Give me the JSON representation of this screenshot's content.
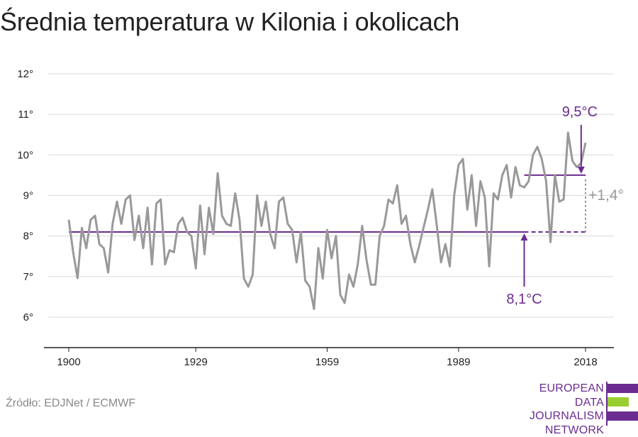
{
  "title": "Średnia temperatura w Kilonia i okolicach",
  "source": "Źródło: EDJNet / ECMWF",
  "logo": {
    "lines": [
      "EUROPEAN",
      "DATA JOURNALISM",
      "NETWORK"
    ],
    "colors": {
      "purple": "#6b2c91",
      "green": "#9acd32"
    }
  },
  "colors": {
    "line": "#999999",
    "average": "#6b2c91",
    "delta": "#999999",
    "grid": "#d9d9d9",
    "axis": "#222222"
  },
  "chart_data": {
    "type": "line",
    "title": "Średnia temperatura w Kilonia i okolicach",
    "xlim": [
      1900,
      2018
    ],
    "ylim": [
      5.2,
      12
    ],
    "x_ticks": [
      1900,
      1929,
      1959,
      1989,
      2018
    ],
    "y_ticks": [
      {
        "value": 6,
        "label": "6°"
      },
      {
        "value": 7,
        "label": "7°"
      },
      {
        "value": 8,
        "label": "8°"
      },
      {
        "value": 9,
        "label": "9°"
      },
      {
        "value": 10,
        "label": "10°"
      },
      {
        "value": 11,
        "label": "11°"
      },
      {
        "value": 12,
        "label": "12°"
      }
    ],
    "grid": true,
    "series": [
      {
        "x": [
          1900,
          1901,
          1902,
          1903,
          1904,
          1905,
          1906,
          1907,
          1908,
          1909,
          1910,
          1911,
          1912,
          1913,
          1914,
          1915,
          1916,
          1917,
          1918,
          1919,
          1920,
          1921,
          1922,
          1923,
          1924,
          1925,
          1926,
          1927,
          1928,
          1929,
          1930,
          1931,
          1932,
          1933,
          1934,
          1935,
          1936,
          1937,
          1938,
          1939,
          1940,
          1941,
          1942,
          1943,
          1944,
          1945,
          1946,
          1947,
          1948,
          1949,
          1950,
          1951,
          1952,
          1953,
          1954,
          1955,
          1956,
          1957,
          1958,
          1959,
          1960,
          1961,
          1962,
          1963,
          1964,
          1965,
          1966,
          1967,
          1968,
          1969,
          1970,
          1971,
          1972,
          1973,
          1974,
          1975,
          1976,
          1977,
          1978,
          1979,
          1980,
          1981,
          1982,
          1983,
          1984,
          1985,
          1986,
          1987,
          1988,
          1989,
          1990,
          1991,
          1992,
          1993,
          1994,
          1995,
          1996,
          1997,
          1998,
          1999,
          2000,
          2001,
          2002,
          2003,
          2004,
          2005,
          2006,
          2007,
          2008,
          2009,
          2010,
          2011,
          2012,
          2013,
          2014,
          2015,
          2016,
          2017,
          2018
        ],
        "y": [
          8.4,
          7.6,
          6.96,
          8.2,
          7.7,
          8.4,
          8.5,
          7.8,
          7.7,
          7.1,
          8.3,
          8.85,
          8.3,
          8.9,
          9.0,
          7.9,
          8.5,
          7.7,
          8.7,
          7.3,
          8.8,
          8.9,
          7.3,
          7.65,
          7.6,
          8.3,
          8.45,
          8.1,
          8.0,
          7.2,
          8.75,
          7.55,
          8.7,
          8.05,
          9.55,
          8.5,
          8.3,
          8.25,
          9.05,
          8.4,
          6.95,
          6.75,
          7.05,
          9.0,
          8.25,
          8.85,
          8.05,
          7.7,
          8.85,
          8.95,
          8.3,
          8.15,
          7.35,
          8.1,
          6.9,
          6.75,
          6.2,
          7.7,
          6.95,
          8.15,
          7.45,
          8.0,
          6.55,
          6.35,
          7.05,
          6.75,
          7.3,
          8.25,
          7.4,
          6.8,
          6.8,
          8.0,
          8.25,
          8.9,
          8.8,
          9.25,
          8.3,
          8.5,
          7.8,
          7.35,
          7.75,
          8.2,
          8.65,
          9.15,
          8.3,
          7.35,
          7.8,
          7.25,
          9.0,
          9.75,
          9.9,
          8.65,
          9.5,
          8.25,
          9.35,
          8.95,
          7.25,
          9.05,
          8.9,
          9.5,
          9.75,
          8.95,
          9.7,
          9.25,
          9.2,
          9.35,
          10.0,
          10.2,
          9.9,
          9.35,
          7.85,
          9.5,
          8.85,
          8.9,
          10.55,
          9.85,
          9.7,
          9.8,
          10.3
        ]
      }
    ],
    "baseline": {
      "value": 8.1,
      "label": "8,1°C",
      "from": 1900,
      "to": 2018,
      "solid_until": 2004
    },
    "recent": {
      "value": 9.5,
      "label": "9,5°C",
      "from": 2004,
      "to": 2018
    },
    "delta": {
      "label": "+1,4°"
    }
  }
}
